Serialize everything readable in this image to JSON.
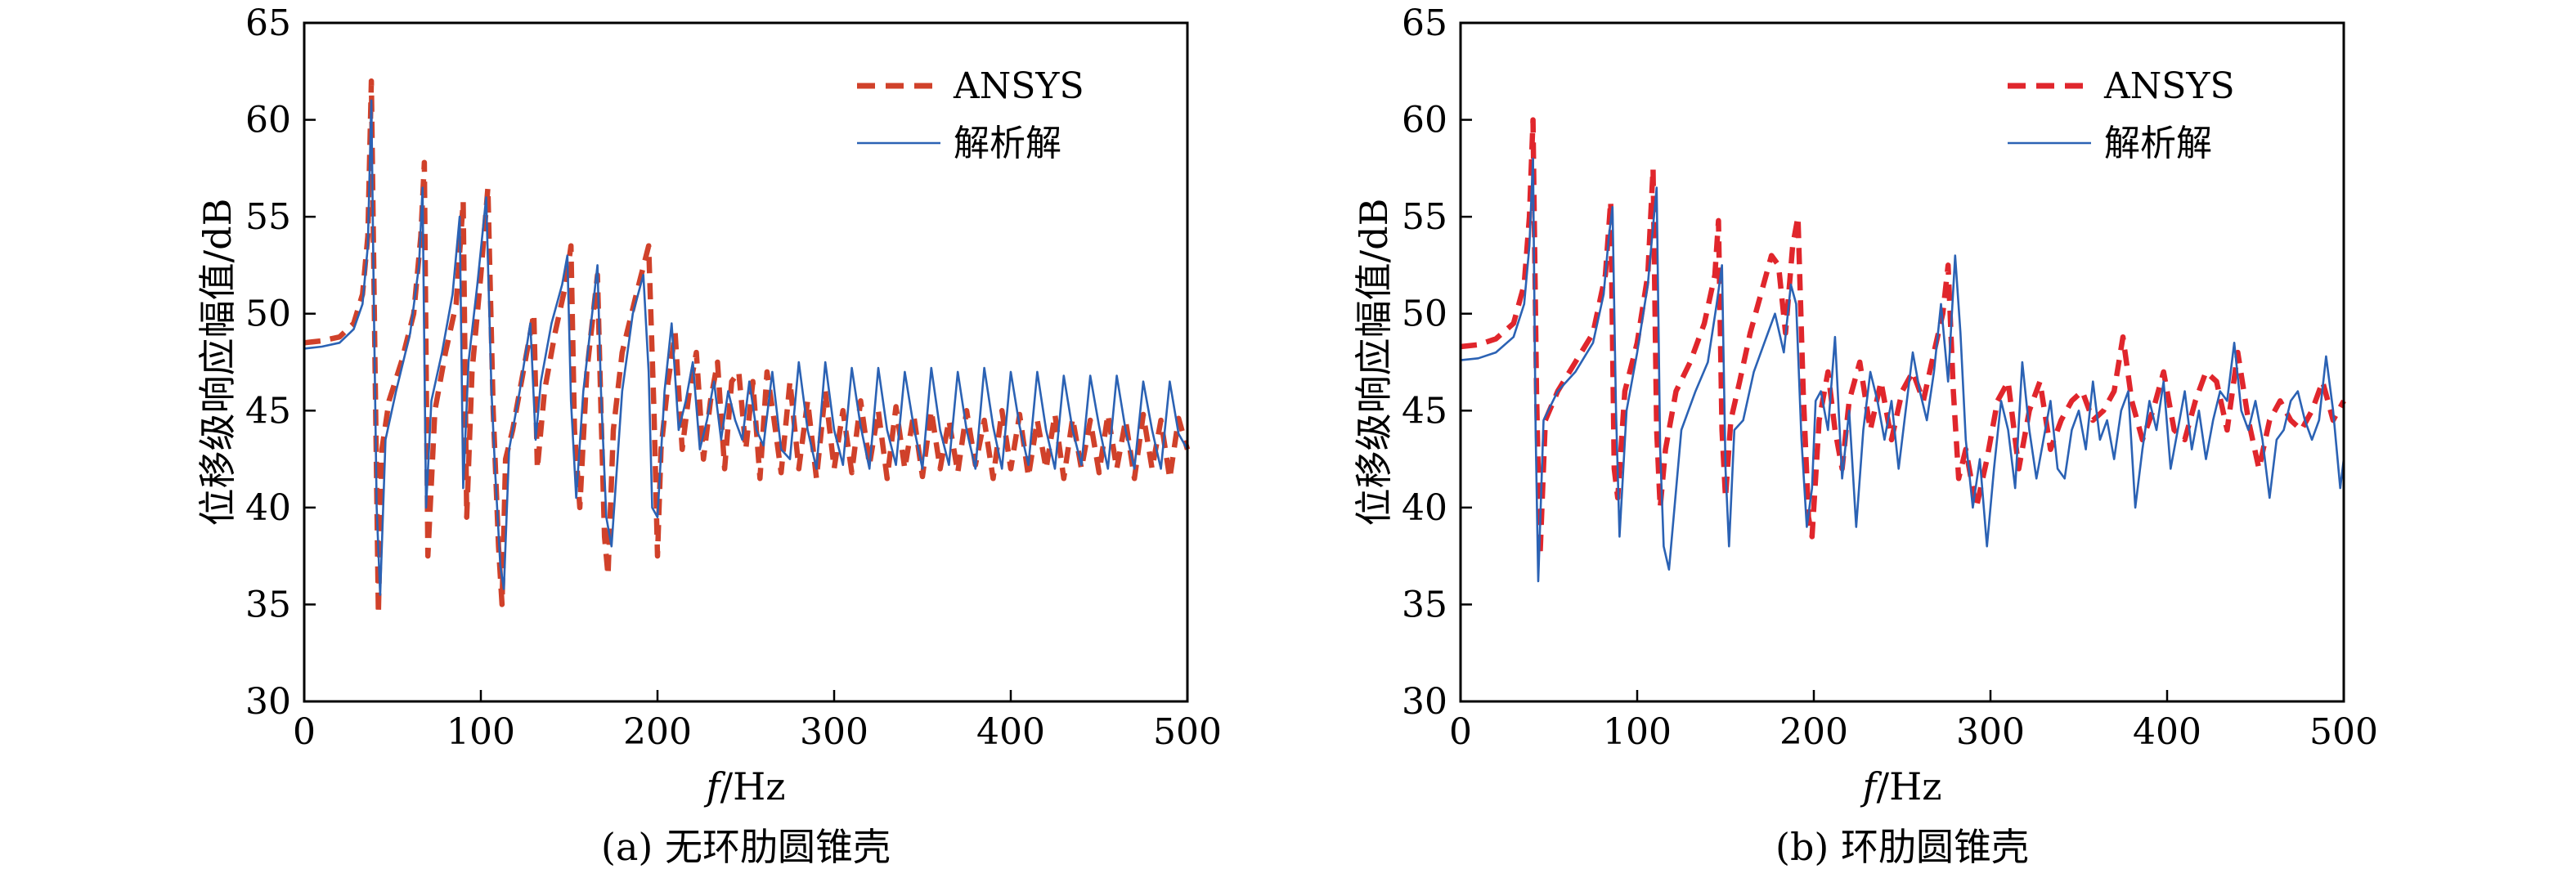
{
  "colors": {
    "ansys": "#d0412a",
    "analytic": "#2b62b4",
    "axis": "#000000",
    "background": "#ffffff"
  },
  "chart_data": [
    {
      "type": "line",
      "panel": "a",
      "caption": "(a) 无环肋圆锥壳",
      "xlabel_italic": "f",
      "xlabel_unit": "/Hz",
      "ylabel": "位移级响应幅值/dB",
      "xlim": [
        0,
        500
      ],
      "ylim": [
        30,
        65
      ],
      "xticks": [
        0,
        100,
        200,
        300,
        400,
        500
      ],
      "yticks": [
        30,
        35,
        40,
        45,
        50,
        55,
        60,
        65
      ],
      "x_tick_labels": [
        "0",
        "100",
        "200",
        "300",
        "400",
        "500"
      ],
      "y_tick_labels": [
        "30",
        "35",
        "40",
        "45",
        "50",
        "55",
        "60",
        "65"
      ],
      "grid": false,
      "legend_position": "top-right",
      "series": [
        {
          "name": "ANSYS",
          "style": "dashed",
          "color": "#d0412a",
          "x": [
            0,
            10,
            20,
            28,
            33,
            36,
            38,
            40,
            42,
            44,
            48,
            55,
            62,
            66,
            68,
            70,
            74,
            80,
            86,
            90,
            92,
            95,
            100,
            104,
            107,
            110,
            112,
            114,
            118,
            124,
            130,
            132,
            136,
            142,
            148,
            151,
            153,
            156,
            160,
            166,
            168,
            170,
            172,
            175,
            180,
            188,
            195,
            198,
            200,
            202,
            206,
            210,
            214,
            218,
            222,
            226,
            230,
            234,
            238,
            242,
            246,
            250,
            254,
            258,
            262,
            266,
            270,
            275,
            280,
            285,
            290,
            295,
            300,
            305,
            310,
            315,
            320,
            325,
            330,
            335,
            340,
            345,
            350,
            355,
            360,
            365,
            370,
            375,
            380,
            385,
            390,
            395,
            400,
            405,
            410,
            415,
            420,
            425,
            430,
            435,
            440,
            445,
            450,
            455,
            460,
            465,
            470,
            475,
            480,
            485,
            490,
            495,
            500
          ],
          "y": [
            48.5,
            48.6,
            48.8,
            49.5,
            51.0,
            54.0,
            62.0,
            48.0,
            34.5,
            43.0,
            45.5,
            47.5,
            50.0,
            54.0,
            57.8,
            37.5,
            45.0,
            48.0,
            50.5,
            55.8,
            39.5,
            47.0,
            52.0,
            56.5,
            45.0,
            38.0,
            35.0,
            42.5,
            44.0,
            47.0,
            50.0,
            42.0,
            46.0,
            49.0,
            51.5,
            53.5,
            44.0,
            40.0,
            47.0,
            52.0,
            45.0,
            38.5,
            36.5,
            44.0,
            48.0,
            51.0,
            53.5,
            45.0,
            37.5,
            43.0,
            46.5,
            49.0,
            43.0,
            46.0,
            48.0,
            42.5,
            45.5,
            47.5,
            42.0,
            46.5,
            47.0,
            43.0,
            46.5,
            41.5,
            47.0,
            44.5,
            41.8,
            46.5,
            42.0,
            45.5,
            41.5,
            46.0,
            42.0,
            45.0,
            41.8,
            45.5,
            42.2,
            45.0,
            41.5,
            45.2,
            42.0,
            44.8,
            41.6,
            45.0,
            42.0,
            44.5,
            41.8,
            45.0,
            42.2,
            44.5,
            41.5,
            45.0,
            42.0,
            44.8,
            41.6,
            44.5,
            42.0,
            44.8,
            41.5,
            44.6,
            42.0,
            44.5,
            41.8,
            44.8,
            42.0,
            44.5,
            41.5,
            44.8,
            42.0,
            44.5,
            41.5,
            44.6,
            43.0
          ]
        },
        {
          "name": "解析解",
          "style": "solid",
          "color": "#2b62b4",
          "x": [
            0,
            10,
            20,
            28,
            33,
            36,
            38,
            39.5,
            41,
            43,
            46,
            52,
            60,
            65,
            67,
            69,
            72,
            78,
            84,
            88,
            90,
            93,
            98,
            103,
            106,
            108,
            111,
            113,
            116,
            122,
            128,
            131,
            134,
            140,
            146,
            149,
            151,
            154,
            158,
            163,
            166,
            168,
            171,
            174,
            180,
            186,
            192,
            195,
            197,
            200,
            204,
            208,
            212,
            216,
            220,
            224,
            228,
            232,
            236,
            240,
            244,
            248,
            252,
            256,
            260,
            265,
            270,
            275,
            280,
            285,
            290,
            295,
            300,
            305,
            310,
            315,
            320,
            325,
            330,
            335,
            340,
            345,
            350,
            355,
            360,
            365,
            370,
            375,
            380,
            385,
            390,
            395,
            400,
            405,
            410,
            415,
            420,
            425,
            430,
            435,
            440,
            445,
            450,
            455,
            460,
            465,
            470,
            475,
            480,
            485,
            490,
            495,
            500
          ],
          "y": [
            48.2,
            48.3,
            48.5,
            49.2,
            50.5,
            53.5,
            61.0,
            50.0,
            40.0,
            35.5,
            43.5,
            46.0,
            49.0,
            52.5,
            56.5,
            40.0,
            45.5,
            48.0,
            51.0,
            55.0,
            41.0,
            47.5,
            51.5,
            56.0,
            46.0,
            42.0,
            37.0,
            35.8,
            43.0,
            46.0,
            49.5,
            43.5,
            46.5,
            49.5,
            51.5,
            53.0,
            45.5,
            40.5,
            46.0,
            50.0,
            52.5,
            46.0,
            39.5,
            38.0,
            46.0,
            50.0,
            52.0,
            47.0,
            40.0,
            39.5,
            46.0,
            49.5,
            44.0,
            45.5,
            47.5,
            43.0,
            44.5,
            46.5,
            43.5,
            46.0,
            44.5,
            43.5,
            46.5,
            44.0,
            43.2,
            47.0,
            43.0,
            42.5,
            47.5,
            44.0,
            42.0,
            47.5,
            44.0,
            42.2,
            47.2,
            44.2,
            42.0,
            47.2,
            44.0,
            42.2,
            47.0,
            44.2,
            42.0,
            47.2,
            44.0,
            42.2,
            47.0,
            44.0,
            42.0,
            47.2,
            44.2,
            42.0,
            47.0,
            44.2,
            42.2,
            47.0,
            44.0,
            42.0,
            46.8,
            44.0,
            42.2,
            46.8,
            44.2,
            42.0,
            46.8,
            44.0,
            42.0,
            46.5,
            44.0,
            42.0,
            46.5,
            43.8,
            43.0
          ]
        }
      ]
    },
    {
      "type": "line",
      "panel": "b",
      "caption": "(b) 环肋圆锥壳",
      "xlabel_italic": "f",
      "xlabel_unit": "/Hz",
      "ylabel": "位移级响应幅值/dB",
      "xlim": [
        0,
        500
      ],
      "ylim": [
        30,
        65
      ],
      "xticks": [
        0,
        100,
        200,
        300,
        400,
        500
      ],
      "yticks": [
        30,
        35,
        40,
        45,
        50,
        55,
        60,
        65
      ],
      "x_tick_labels": [
        "0",
        "100",
        "200",
        "300",
        "400",
        "500"
      ],
      "y_tick_labels": [
        "30",
        "35",
        "40",
        "45",
        "50",
        "55",
        "60",
        "65"
      ],
      "grid": false,
      "legend_position": "top-right",
      "series": [
        {
          "name": "ANSYS",
          "style": "dashed",
          "color": "#e0262c",
          "x": [
            0,
            10,
            20,
            30,
            36,
            39,
            41,
            43,
            45,
            48,
            55,
            65,
            75,
            82,
            85,
            87,
            89,
            93,
            100,
            106,
            109,
            111,
            113,
            116,
            122,
            130,
            138,
            144,
            146,
            148,
            150,
            153,
            158,
            164,
            170,
            176,
            180,
            184,
            188,
            191,
            194,
            197,
            199,
            203,
            208,
            212,
            216,
            220,
            226,
            232,
            238,
            244,
            250,
            256,
            262,
            268,
            273,
            276,
            279,
            282,
            286,
            292,
            298,
            304,
            310,
            316,
            322,
            328,
            334,
            340,
            346,
            352,
            358,
            364,
            370,
            375,
            380,
            386,
            392,
            398,
            404,
            410,
            416,
            422,
            428,
            434,
            440,
            446,
            452,
            458,
            464,
            470,
            476,
            482,
            488,
            494,
            500
          ],
          "y": [
            48.3,
            48.4,
            48.7,
            49.5,
            51.5,
            55.0,
            60.0,
            46.0,
            37.5,
            44.5,
            46.0,
            47.5,
            49.0,
            52.0,
            55.8,
            42.0,
            40.5,
            46.0,
            48.5,
            52.0,
            57.5,
            44.0,
            40.0,
            43.0,
            46.0,
            47.5,
            49.5,
            52.0,
            54.8,
            44.0,
            40.5,
            44.5,
            46.5,
            49.0,
            51.0,
            53.0,
            52.5,
            49.0,
            53.5,
            55.0,
            46.0,
            39.5,
            38.5,
            44.5,
            47.0,
            44.0,
            42.0,
            45.5,
            47.5,
            44.0,
            46.5,
            43.5,
            46.0,
            47.0,
            45.5,
            48.0,
            50.0,
            52.5,
            46.0,
            41.5,
            43.0,
            40.0,
            42.5,
            45.5,
            46.5,
            42.0,
            45.0,
            46.5,
            43.0,
            44.5,
            45.5,
            46.0,
            44.5,
            45.0,
            46.0,
            48.8,
            45.5,
            43.5,
            45.0,
            47.0,
            44.0,
            43.5,
            45.5,
            47.0,
            46.5,
            44.0,
            48.0,
            44.5,
            42.0,
            44.5,
            45.5,
            44.5,
            44.0,
            45.0,
            46.5,
            44.5,
            45.5
          ]
        },
        {
          "name": "解析解",
          "style": "solid",
          "color": "#2b62b4",
          "x": [
            0,
            10,
            20,
            30,
            36,
            39,
            41,
            42.5,
            44,
            47,
            55,
            65,
            75,
            81,
            84,
            86,
            88,
            90,
            94,
            100,
            106,
            109,
            111,
            113,
            115,
            118,
            125,
            133,
            140,
            145,
            148,
            150,
            152,
            155,
            160,
            166,
            172,
            178,
            183,
            187,
            190,
            193,
            196,
            199,
            201,
            204,
            208,
            212,
            216,
            220,
            224,
            228,
            232,
            236,
            240,
            244,
            248,
            252,
            256,
            260,
            264,
            268,
            272,
            276,
            280,
            283,
            286,
            290,
            294,
            298,
            302,
            306,
            310,
            314,
            318,
            322,
            326,
            330,
            334,
            338,
            342,
            346,
            350,
            354,
            358,
            362,
            366,
            370,
            374,
            378,
            382,
            386,
            390,
            394,
            398,
            402,
            406,
            410,
            414,
            418,
            422,
            426,
            430,
            434,
            438,
            442,
            446,
            450,
            454,
            458,
            462,
            466,
            470,
            474,
            478,
            482,
            486,
            490,
            494,
            498,
            500
          ],
          "y": [
            47.6,
            47.7,
            48.0,
            48.8,
            50.5,
            53.5,
            58.0,
            44.0,
            36.2,
            44.5,
            46.0,
            47.0,
            48.5,
            51.0,
            54.0,
            55.5,
            45.0,
            38.5,
            45.0,
            48.0,
            51.5,
            54.5,
            56.5,
            43.0,
            38.0,
            36.8,
            44.0,
            46.0,
            47.5,
            50.5,
            52.5,
            42.0,
            38.0,
            44.0,
            44.5,
            47.0,
            48.5,
            50.0,
            48.0,
            51.5,
            50.5,
            43.5,
            39.0,
            41.0,
            45.5,
            46.0,
            44.0,
            48.8,
            41.5,
            45.0,
            39.0,
            44.0,
            47.0,
            45.5,
            43.5,
            45.5,
            42.0,
            45.0,
            48.0,
            46.0,
            44.5,
            47.0,
            50.5,
            46.5,
            53.0,
            49.0,
            43.5,
            40.0,
            42.5,
            38.0,
            42.0,
            45.5,
            44.0,
            41.0,
            47.5,
            44.0,
            41.5,
            43.5,
            45.5,
            42.0,
            41.5,
            44.0,
            45.0,
            43.0,
            46.5,
            43.5,
            44.5,
            42.5,
            45.0,
            46.0,
            40.0,
            43.0,
            45.5,
            44.0,
            46.5,
            42.0,
            44.0,
            46.0,
            43.0,
            45.0,
            42.5,
            44.5,
            46.0,
            45.5,
            48.5,
            45.0,
            44.0,
            45.5,
            43.5,
            40.5,
            43.5,
            44.0,
            45.5,
            46.0,
            44.5,
            43.5,
            44.5,
            47.8,
            45.0,
            41.0,
            42.5
          ]
        }
      ]
    }
  ]
}
